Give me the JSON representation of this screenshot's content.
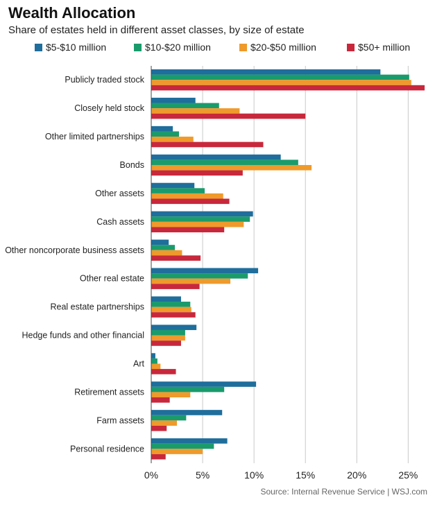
{
  "chart_data": {
    "type": "bar",
    "orientation": "horizontal",
    "title": "Wealth Allocation",
    "subtitle": "Share of estates held in different asset classes, by size of estate",
    "source": "Source: Internal Revenue Service  |  WSJ.com",
    "xlim": [
      0,
      27
    ],
    "ticks": [
      0,
      5,
      10,
      15,
      20,
      25
    ],
    "tick_labels": [
      "0%",
      "5%",
      "10%",
      "15%",
      "20%",
      "25%"
    ],
    "categories": [
      "Publicly traded stock",
      "Closely held stock",
      "Other limited partnerships",
      "Bonds",
      "Other assets",
      "Cash assets",
      "Other noncorporate business assets",
      "Other real estate",
      "Real estate partnerships",
      "Hedge funds and other financial",
      "Art",
      "Retirement assets",
      "Farm assets",
      "Personal residence"
    ],
    "series": [
      {
        "name": "$5-$10 million",
        "color": "#1f6e9c",
        "values": [
          22.3,
          4.3,
          2.1,
          12.6,
          4.2,
          9.9,
          1.7,
          10.4,
          2.9,
          4.4,
          0.4,
          10.2,
          6.9,
          7.4
        ]
      },
      {
        "name": "$10-$20 million",
        "color": "#1a9b6c",
        "values": [
          25.1,
          6.6,
          2.7,
          14.3,
          5.2,
          9.6,
          2.3,
          9.4,
          3.8,
          3.3,
          0.6,
          7.1,
          3.4,
          6.1
        ]
      },
      {
        "name": "$20-$50 million",
        "color": "#ef9a2b",
        "values": [
          25.3,
          8.6,
          4.1,
          15.6,
          7.0,
          9.0,
          3.0,
          7.7,
          3.9,
          3.3,
          0.9,
          3.8,
          2.5,
          5.0
        ]
      },
      {
        "name": "$50+ million",
        "color": "#c8283c",
        "values": [
          26.6,
          15.0,
          10.9,
          8.9,
          7.6,
          7.1,
          4.8,
          4.7,
          4.3,
          2.9,
          2.4,
          1.8,
          1.5,
          1.4
        ]
      }
    ]
  }
}
